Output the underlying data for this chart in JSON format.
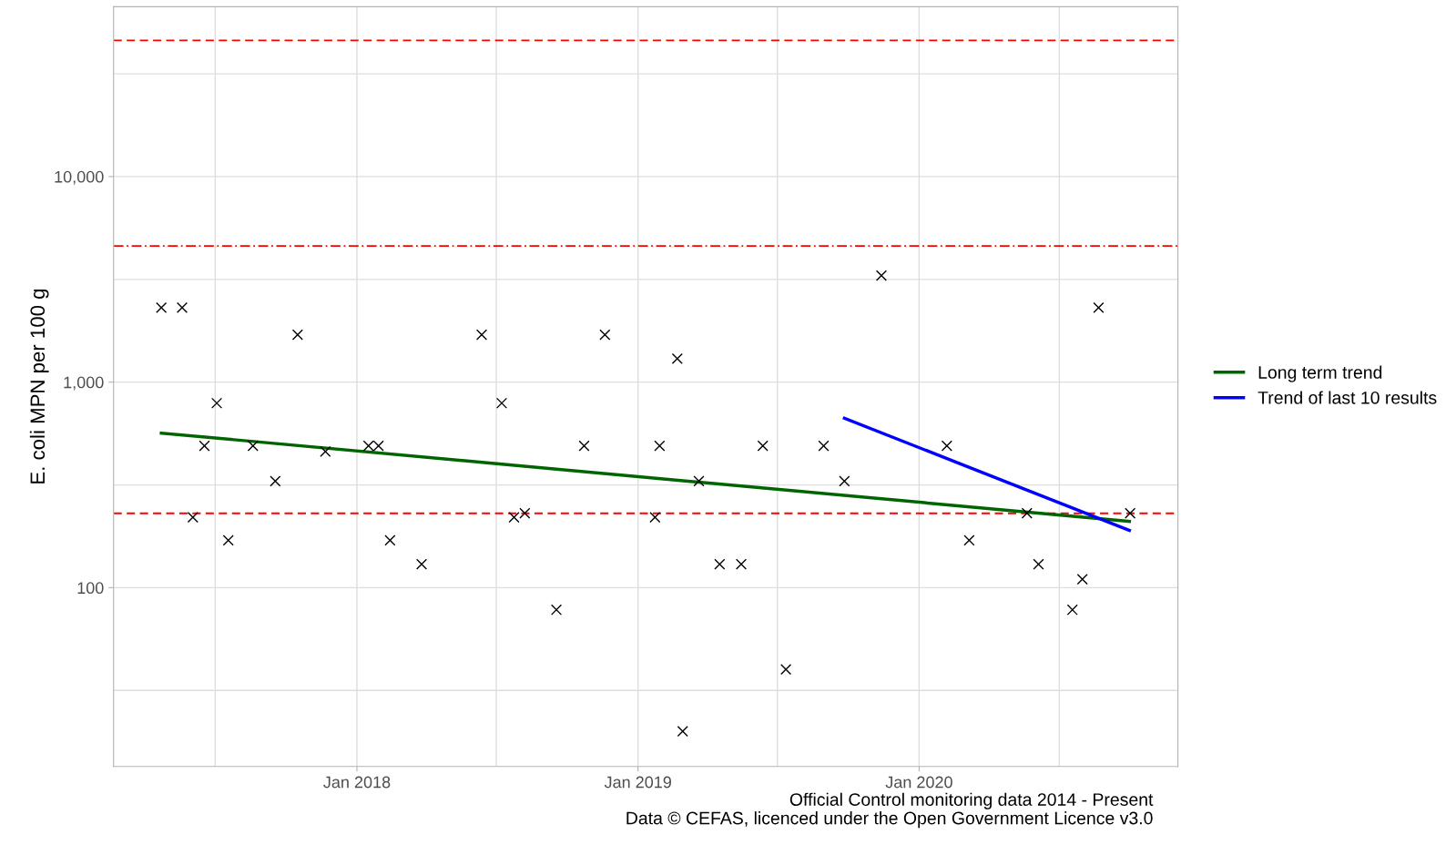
{
  "chart_data": {
    "type": "scatter",
    "ylabel": "E. coli MPN per 100 g",
    "log": "y",
    "grid": true,
    "legend": "right",
    "marker": "cross",
    "xlim": [
      "2017-02-19",
      "2020-12-02"
    ],
    "ylim": [
      13.5,
      67000
    ],
    "xticks": [
      {
        "value": "2017-07-01",
        "label": null
      },
      {
        "value": "2018-01-01",
        "label": "Jan 2018"
      },
      {
        "value": "2018-07-01",
        "label": null
      },
      {
        "value": "2019-01-01",
        "label": "Jan 2019"
      },
      {
        "value": "2019-07-01",
        "label": null
      },
      {
        "value": "2020-01-01",
        "label": "Jan 2020"
      },
      {
        "value": "2020-07-01",
        "label": null
      }
    ],
    "yticks": [
      {
        "value": 31.6,
        "label": null
      },
      {
        "value": 100,
        "label": "100"
      },
      {
        "value": 316,
        "label": null
      },
      {
        "value": 1000,
        "label": "1,000"
      },
      {
        "value": 3160,
        "label": null
      },
      {
        "value": 10000,
        "label": "10,000"
      },
      {
        "value": 31600,
        "label": null
      }
    ],
    "series": [
      {
        "color": "#000000",
        "x": [
          "2017-04-22",
          "2017-05-19",
          "2017-06-02",
          "2017-06-17",
          "2017-07-03",
          "2017-07-18",
          "2017-08-19",
          "2017-09-17",
          "2017-10-16",
          "2017-11-21",
          "2018-01-16",
          "2018-01-29",
          "2018-02-13",
          "2018-03-26",
          "2018-06-12",
          "2018-07-08",
          "2018-07-24",
          "2018-08-07",
          "2018-09-17",
          "2018-10-23",
          "2018-11-19",
          "2019-01-23",
          "2019-01-29",
          "2019-02-21",
          "2019-02-28",
          "2019-03-21",
          "2019-04-17",
          "2019-05-15",
          "2019-06-12",
          "2019-07-12",
          "2019-08-30",
          "2019-09-26",
          "2019-11-13",
          "2020-02-06",
          "2020-03-06",
          "2020-05-20",
          "2020-06-04",
          "2020-07-18",
          "2020-07-31",
          "2020-08-21",
          "2020-10-01"
        ],
        "values": [
          2300,
          2300,
          220,
          490,
          790,
          170,
          490,
          330,
          1700,
          460,
          490,
          490,
          170,
          130,
          1700,
          790,
          220,
          230,
          78,
          490,
          1700,
          220,
          490,
          1300,
          20,
          330,
          130,
          130,
          490,
          40,
          490,
          330,
          3300,
          490,
          170,
          230,
          130,
          78,
          110,
          2300,
          230
        ]
      },
      {
        "type": "line",
        "marker": "none",
        "name": "Long term trend",
        "color": "#006400",
        "x": [
          "2017-04-22",
          "2020-09-30"
        ],
        "values": [
          565,
          210
        ]
      },
      {
        "type": "line",
        "marker": "none",
        "name": "Trend of last 10 results",
        "color": "#0000ff",
        "x": [
          "2019-09-26",
          "2020-09-30"
        ],
        "values": [
          667,
          190
        ]
      }
    ],
    "ref_lines": [
      {
        "axis": "y",
        "value": 46000,
        "color": "#ff0000",
        "line_style": "dashed"
      },
      {
        "axis": "y",
        "value": 4600,
        "color": "#ff0000",
        "line_style": "dashdot"
      },
      {
        "axis": "y",
        "value": 230,
        "color": "#ff0000",
        "line_style": "dashed"
      }
    ],
    "annotations": [
      "Official Control monitoring data 2014 - Present",
      "Data © CEFAS, licenced under the Open Government Licence v3.0"
    ]
  }
}
